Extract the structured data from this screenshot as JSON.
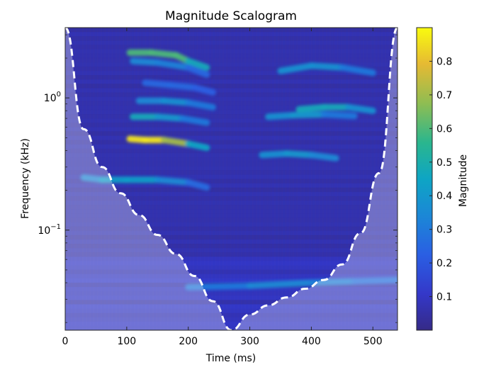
{
  "chart_data": {
    "type": "heatmap",
    "title": "Magnitude Scalogram",
    "xlabel": "Time (ms)",
    "ylabel": "Frequency (kHz)",
    "xlim": [
      0,
      540
    ],
    "ylim_khz": [
      0.0175,
      3.4
    ],
    "yscale": "log",
    "x_ticks": [
      0,
      100,
      200,
      300,
      400,
      500
    ],
    "x_tick_labels": [
      "0",
      "100",
      "200",
      "300",
      "400",
      "500"
    ],
    "y_ticks": [
      1.0,
      0.1
    ],
    "y_tick_labels": [
      {
        "base": "10",
        "exp": "0"
      },
      {
        "base": "10",
        "exp": "−1"
      }
    ],
    "colorbar": {
      "label": "Magnitude",
      "range": [
        0,
        0.9
      ],
      "ticks": [
        0.1,
        0.2,
        0.3,
        0.4,
        0.5,
        0.6,
        0.7,
        0.8
      ],
      "tick_labels": [
        "0.1",
        "0.2",
        "0.3",
        "0.4",
        "0.5",
        "0.6",
        "0.7",
        "0.8"
      ],
      "colormap": "parula"
    },
    "cone_of_influence": {
      "style": "dashed white",
      "t_ms": [
        0,
        30,
        60,
        90,
        120,
        150,
        180,
        210,
        240,
        270,
        300,
        330,
        360,
        390,
        420,
        450,
        480,
        510,
        540
      ],
      "f_khz": [
        3.4,
        0.58,
        0.3,
        0.19,
        0.13,
        0.092,
        0.066,
        0.045,
        0.029,
        0.0175,
        0.023,
        0.027,
        0.031,
        0.036,
        0.042,
        0.055,
        0.095,
        0.27,
        3.4
      ]
    },
    "ridges": [
      {
        "name": "harmonic-1",
        "t_ms": [
          30,
          60,
          100,
          150,
          200,
          230
        ],
        "f_khz": [
          0.25,
          0.24,
          0.24,
          0.24,
          0.23,
          0.21
        ],
        "magnitude": [
          0.3,
          0.4,
          0.45,
          0.4,
          0.3,
          0.22
        ]
      },
      {
        "name": "harmonic-2",
        "t_ms": [
          105,
          130,
          160,
          200,
          230
        ],
        "f_khz": [
          0.49,
          0.48,
          0.48,
          0.45,
          0.42
        ],
        "magnitude": [
          0.85,
          0.88,
          0.85,
          0.55,
          0.35
        ]
      },
      {
        "name": "harmonic-3",
        "t_ms": [
          110,
          150,
          190,
          230
        ],
        "f_khz": [
          0.72,
          0.72,
          0.7,
          0.65
        ],
        "magnitude": [
          0.5,
          0.45,
          0.35,
          0.25
        ]
      },
      {
        "name": "harmonic-4",
        "t_ms": [
          120,
          160,
          200,
          240
        ],
        "f_khz": [
          0.95,
          0.95,
          0.92,
          0.85
        ],
        "magnitude": [
          0.3,
          0.4,
          0.35,
          0.25
        ]
      },
      {
        "name": "harmonic-5",
        "t_ms": [
          105,
          140,
          180,
          200,
          230
        ],
        "f_khz": [
          2.2,
          2.2,
          2.1,
          1.9,
          1.7
        ],
        "magnitude": [
          0.55,
          0.65,
          0.55,
          0.65,
          0.3
        ]
      },
      {
        "name": "harmonic-6",
        "t_ms": [
          110,
          150,
          200,
          230
        ],
        "f_khz": [
          1.9,
          1.85,
          1.7,
          1.5
        ],
        "magnitude": [
          0.35,
          0.35,
          0.3,
          0.2
        ]
      },
      {
        "name": "harmonic-7",
        "t_ms": [
          130,
          170,
          210,
          240
        ],
        "f_khz": [
          1.3,
          1.25,
          1.2,
          1.1
        ],
        "magnitude": [
          0.25,
          0.25,
          0.25,
          0.2
        ]
      },
      {
        "name": "harmonic-8",
        "t_ms": [
          320,
          360,
          400,
          440
        ],
        "f_khz": [
          0.37,
          0.38,
          0.37,
          0.35
        ],
        "magnitude": [
          0.35,
          0.4,
          0.4,
          0.3
        ]
      },
      {
        "name": "harmonic-9",
        "t_ms": [
          330,
          370,
          420,
          470
        ],
        "f_khz": [
          0.72,
          0.74,
          0.75,
          0.73
        ],
        "magnitude": [
          0.3,
          0.45,
          0.35,
          0.25
        ]
      },
      {
        "name": "harmonic-10",
        "t_ms": [
          380,
          420,
          460,
          500
        ],
        "f_khz": [
          0.82,
          0.85,
          0.85,
          0.8
        ],
        "magnitude": [
          0.45,
          0.5,
          0.45,
          0.3
        ]
      },
      {
        "name": "harmonic-11",
        "t_ms": [
          350,
          400,
          450,
          500
        ],
        "f_khz": [
          1.6,
          1.75,
          1.7,
          1.55
        ],
        "magnitude": [
          0.35,
          0.4,
          0.35,
          0.25
        ]
      },
      {
        "name": "low-tone",
        "t_ms": [
          200,
          300,
          400,
          470,
          540
        ],
        "f_khz": [
          0.037,
          0.038,
          0.04,
          0.041,
          0.042
        ],
        "magnitude": [
          0.25,
          0.35,
          0.35,
          0.3,
          0.25
        ]
      }
    ]
  }
}
